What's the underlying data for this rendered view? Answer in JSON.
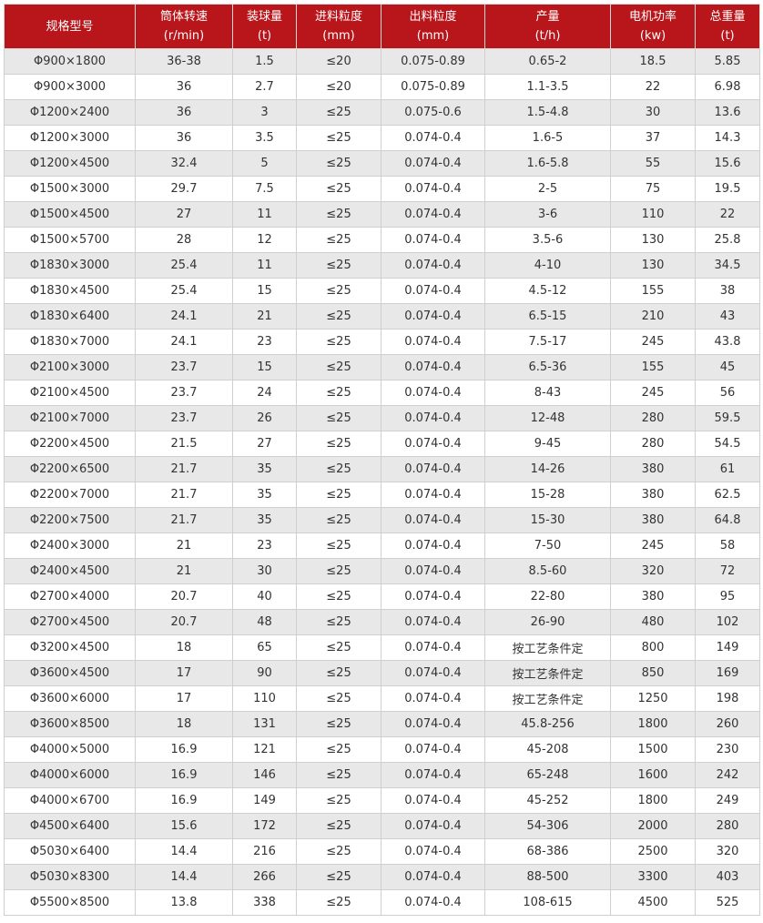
{
  "header": [
    {
      "name": "规格型号",
      "unit": ""
    },
    {
      "name": "筒体转速",
      "unit": "(r/min)"
    },
    {
      "name": "装球量",
      "unit": "(t)"
    },
    {
      "name": "进料粒度",
      "unit": "(mm)"
    },
    {
      "name": "出料粒度",
      "unit": "(mm)"
    },
    {
      "name": "产量",
      "unit": "(t/h)"
    },
    {
      "name": "电机功率",
      "unit": "(kw)"
    },
    {
      "name": "总重量",
      "unit": "(t)"
    }
  ],
  "colors": {
    "header_bg": "#b8161b",
    "row_alt": "#e8e8e8"
  },
  "rows": [
    [
      "Φ900×1800",
      "36-38",
      "1.5",
      "≤20",
      "0.075-0.89",
      "0.65-2",
      "18.5",
      "5.85"
    ],
    [
      "Φ900×3000",
      "36",
      "2.7",
      "≤20",
      "0.075-0.89",
      "1.1-3.5",
      "22",
      "6.98"
    ],
    [
      "Φ1200×2400",
      "36",
      "3",
      "≤25",
      "0.075-0.6",
      "1.5-4.8",
      "30",
      "13.6"
    ],
    [
      "Φ1200×3000",
      "36",
      "3.5",
      "≤25",
      "0.074-0.4",
      "1.6-5",
      "37",
      "14.3"
    ],
    [
      "Φ1200×4500",
      "32.4",
      "5",
      "≤25",
      "0.074-0.4",
      "1.6-5.8",
      "55",
      "15.6"
    ],
    [
      "Φ1500×3000",
      "29.7",
      "7.5",
      "≤25",
      "0.074-0.4",
      "2-5",
      "75",
      "19.5"
    ],
    [
      "Φ1500×4500",
      "27",
      "11",
      "≤25",
      "0.074-0.4",
      "3-6",
      "110",
      "22"
    ],
    [
      "Φ1500×5700",
      "28",
      "12",
      "≤25",
      "0.074-0.4",
      "3.5-6",
      "130",
      "25.8"
    ],
    [
      "Φ1830×3000",
      "25.4",
      "11",
      "≤25",
      "0.074-0.4",
      "4-10",
      "130",
      "34.5"
    ],
    [
      "Φ1830×4500",
      "25.4",
      "15",
      "≤25",
      "0.074-0.4",
      "4.5-12",
      "155",
      "38"
    ],
    [
      "Φ1830×6400",
      "24.1",
      "21",
      "≤25",
      "0.074-0.4",
      "6.5-15",
      "210",
      "43"
    ],
    [
      "Φ1830×7000",
      "24.1",
      "23",
      "≤25",
      "0.074-0.4",
      "7.5-17",
      "245",
      "43.8"
    ],
    [
      "Φ2100×3000",
      "23.7",
      "15",
      "≤25",
      "0.074-0.4",
      "6.5-36",
      "155",
      "45"
    ],
    [
      "Φ2100×4500",
      "23.7",
      "24",
      "≤25",
      "0.074-0.4",
      "8-43",
      "245",
      "56"
    ],
    [
      "Φ2100×7000",
      "23.7",
      "26",
      "≤25",
      "0.074-0.4",
      "12-48",
      "280",
      "59.5"
    ],
    [
      "Φ2200×4500",
      "21.5",
      "27",
      "≤25",
      "0.074-0.4",
      "9-45",
      "280",
      "54.5"
    ],
    [
      "Φ2200×6500",
      "21.7",
      "35",
      "≤25",
      "0.074-0.4",
      "14-26",
      "380",
      "61"
    ],
    [
      "Φ2200×7000",
      "21.7",
      "35",
      "≤25",
      "0.074-0.4",
      "15-28",
      "380",
      "62.5"
    ],
    [
      "Φ2200×7500",
      "21.7",
      "35",
      "≤25",
      "0.074-0.4",
      "15-30",
      "380",
      "64.8"
    ],
    [
      "Φ2400×3000",
      "21",
      "23",
      "≤25",
      "0.074-0.4",
      "7-50",
      "245",
      "58"
    ],
    [
      "Φ2400×4500",
      "21",
      "30",
      "≤25",
      "0.074-0.4",
      "8.5-60",
      "320",
      "72"
    ],
    [
      "Φ2700×4000",
      "20.7",
      "40",
      "≤25",
      "0.074-0.4",
      "22-80",
      "380",
      "95"
    ],
    [
      "Φ2700×4500",
      "20.7",
      "48",
      "≤25",
      "0.074-0.4",
      "26-90",
      "480",
      "102"
    ],
    [
      "Φ3200×4500",
      "18",
      "65",
      "≤25",
      "0.074-0.4",
      "按工艺条件定",
      "800",
      "149"
    ],
    [
      "Φ3600×4500",
      "17",
      "90",
      "≤25",
      "0.074-0.4",
      "按工艺条件定",
      "850",
      "169"
    ],
    [
      "Φ3600×6000",
      "17",
      "110",
      "≤25",
      "0.074-0.4",
      "按工艺条件定",
      "1250",
      "198"
    ],
    [
      "Φ3600×8500",
      "18",
      "131",
      "≤25",
      "0.074-0.4",
      "45.8-256",
      "1800",
      "260"
    ],
    [
      "Φ4000×5000",
      "16.9",
      "121",
      "≤25",
      "0.074-0.4",
      "45-208",
      "1500",
      "230"
    ],
    [
      "Φ4000×6000",
      "16.9",
      "146",
      "≤25",
      "0.074-0.4",
      "65-248",
      "1600",
      "242"
    ],
    [
      "Φ4000×6700",
      "16.9",
      "149",
      "≤25",
      "0.074-0.4",
      "45-252",
      "1800",
      "249"
    ],
    [
      "Φ4500×6400",
      "15.6",
      "172",
      "≤25",
      "0.074-0.4",
      "54-306",
      "2000",
      "280"
    ],
    [
      "Φ5030×6400",
      "14.4",
      "216",
      "≤25",
      "0.074-0.4",
      "68-386",
      "2500",
      "320"
    ],
    [
      "Φ5030×8300",
      "14.4",
      "266",
      "≤25",
      "0.074-0.4",
      "88-500",
      "3300",
      "403"
    ],
    [
      "Φ5500×8500",
      "13.8",
      "338",
      "≤25",
      "0.074-0.4",
      "108-615",
      "4500",
      "525"
    ]
  ]
}
